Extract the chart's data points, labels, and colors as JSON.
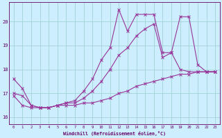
{
  "xlabel": "Windchill (Refroidissement éolien,°C)",
  "background_color": "#cceeff",
  "line_color": "#993399",
  "grid_color": "#99cccc",
  "axis_color": "#660066",
  "text_color": "#660066",
  "xlim": [
    -0.5,
    23.5
  ],
  "ylim": [
    15.7,
    20.8
  ],
  "yticks": [
    16,
    17,
    18,
    19,
    20
  ],
  "xticks": [
    0,
    1,
    2,
    3,
    4,
    5,
    6,
    7,
    8,
    9,
    10,
    11,
    12,
    13,
    14,
    15,
    16,
    17,
    18,
    19,
    20,
    21,
    22,
    23
  ],
  "series1_x": [
    0,
    1,
    2,
    3,
    4,
    5,
    6,
    7,
    8,
    9,
    10,
    11,
    12,
    13,
    14,
    15,
    16,
    17,
    18,
    19,
    20,
    21,
    22,
    23
  ],
  "series1_y": [
    17.6,
    17.2,
    16.5,
    16.4,
    16.4,
    16.5,
    16.6,
    16.7,
    17.1,
    17.6,
    18.4,
    18.9,
    20.5,
    19.6,
    20.3,
    20.3,
    20.3,
    18.7,
    18.7,
    20.2,
    20.2,
    18.2,
    17.9,
    17.9
  ],
  "series2_x": [
    0,
    1,
    2,
    3,
    4,
    5,
    6,
    7,
    8,
    9,
    10,
    11,
    12,
    13,
    14,
    15,
    16,
    17,
    18,
    19,
    20,
    21,
    22,
    23
  ],
  "series2_y": [
    17.0,
    16.9,
    16.5,
    16.4,
    16.4,
    16.5,
    16.6,
    16.6,
    16.8,
    17.1,
    17.5,
    18.0,
    18.6,
    18.9,
    19.4,
    19.7,
    19.9,
    18.5,
    18.7,
    18.0,
    17.9,
    17.9,
    17.9,
    17.9
  ],
  "series3_x": [
    0,
    1,
    2,
    3,
    4,
    5,
    6,
    7,
    8,
    9,
    10,
    11,
    12,
    13,
    14,
    15,
    16,
    17,
    18,
    19,
    20,
    21,
    22,
    23
  ],
  "series3_y": [
    16.9,
    16.5,
    16.4,
    16.4,
    16.4,
    16.5,
    16.5,
    16.5,
    16.6,
    16.6,
    16.7,
    16.8,
    17.0,
    17.1,
    17.3,
    17.4,
    17.5,
    17.6,
    17.7,
    17.8,
    17.8,
    17.9,
    17.9,
    17.9
  ]
}
